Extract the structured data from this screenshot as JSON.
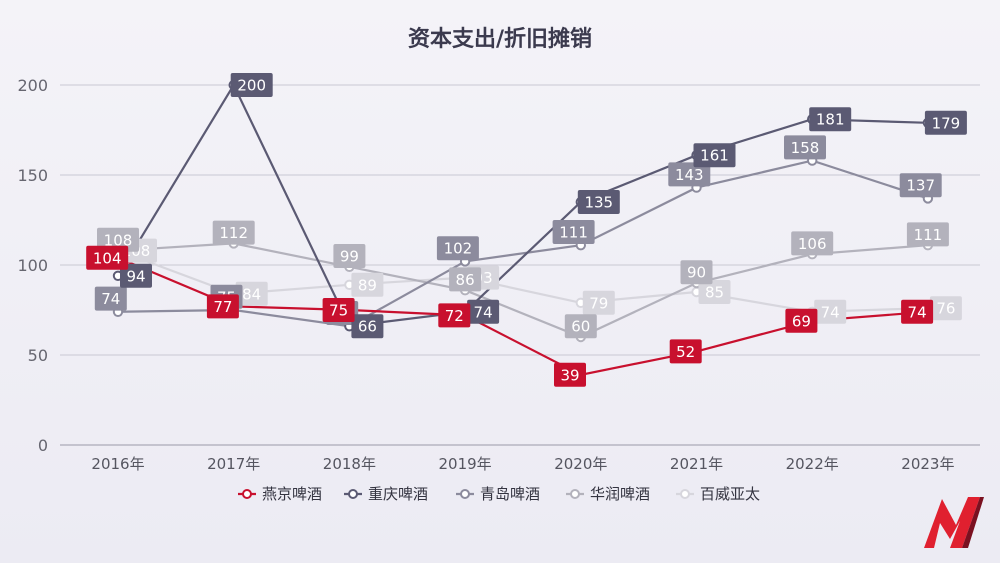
{
  "chart_data": {
    "type": "line",
    "title": "资本支出/折旧摊销",
    "xlabel": "",
    "ylabel": "",
    "categories": [
      "2016年",
      "2017年",
      "2018年",
      "2019年",
      "2020年",
      "2021年",
      "2022年",
      "2023年"
    ],
    "ylim": [
      0,
      200
    ],
    "yticks": [
      0,
      50,
      100,
      150,
      200
    ],
    "grid": true,
    "legend_position": "bottom",
    "series": [
      {
        "name": "燕京啤酒",
        "color": "#c8102e",
        "values": [
          104,
          77,
          75,
          72,
          39,
          52,
          69,
          74
        ]
      },
      {
        "name": "重庆啤酒",
        "color": "#5b5a73",
        "values": [
          94,
          200,
          66,
          74,
          135,
          161,
          181,
          179
        ]
      },
      {
        "name": "青岛啤酒",
        "color": "#8c8b9d",
        "values": [
          74,
          75,
          66,
          102,
          111,
          143,
          158,
          137
        ]
      },
      {
        "name": "华润啤酒",
        "color": "#b3b2bc",
        "values": [
          108,
          112,
          99,
          86,
          60,
          90,
          106,
          111
        ]
      },
      {
        "name": "百威亚太",
        "color": "#d7d6dd",
        "values": [
          108,
          84,
          89,
          93,
          79,
          85,
          74,
          76
        ]
      }
    ]
  },
  "logo": {
    "name": "m-logo-icon",
    "color": "#e0202f"
  }
}
